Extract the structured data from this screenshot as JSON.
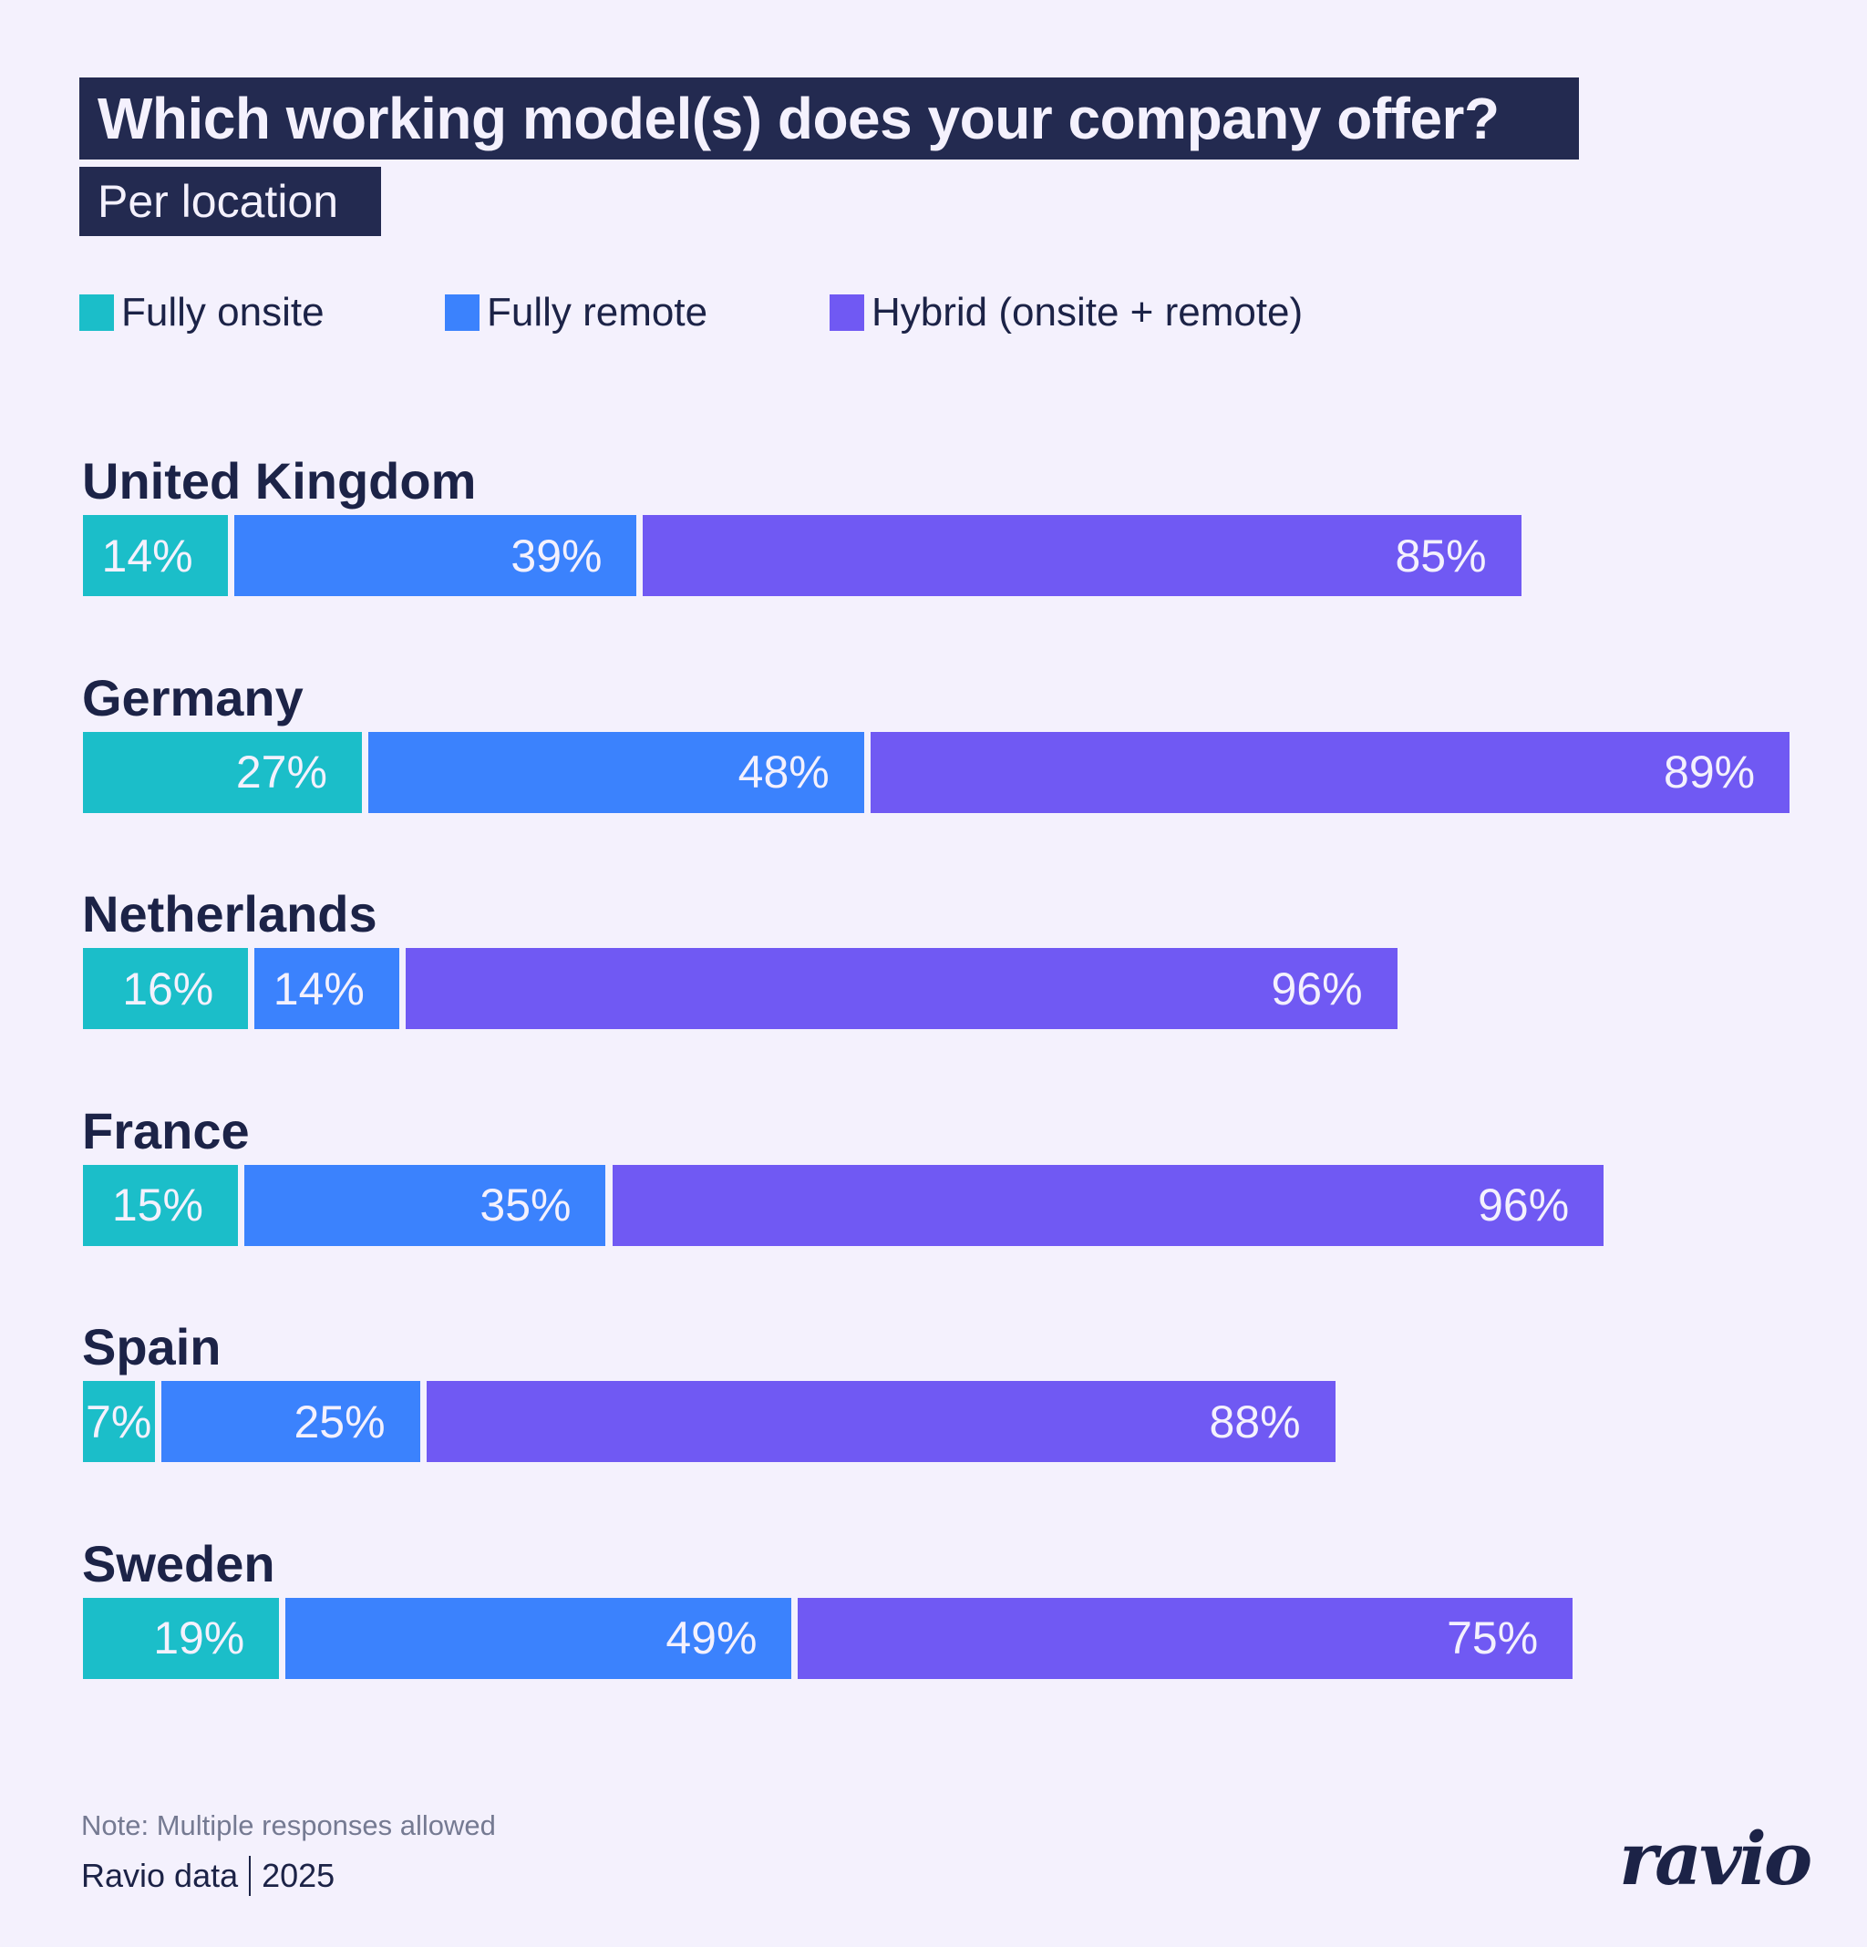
{
  "header": {
    "title": "Which working model(s) does your company offer?",
    "subtitle": "Per location"
  },
  "legend": [
    {
      "label": "Fully onsite",
      "color": "#1BBEC9"
    },
    {
      "label": "Fully remote",
      "color": "#3B82FD"
    },
    {
      "label": "Hybrid (onsite + remote)",
      "color": "#7059F3"
    }
  ],
  "chart_data": {
    "type": "bar",
    "orientation": "horizontal",
    "layout": "grouped-inline (segments placed side by side per country, each sized by its own value)",
    "title": "Which working model(s) does your company offer?",
    "subtitle": "Per location",
    "categories": [
      "United Kingdom",
      "Germany",
      "Netherlands",
      "France",
      "Spain",
      "Sweden"
    ],
    "series": [
      {
        "name": "Fully onsite",
        "color": "#1BBEC9",
        "values": [
          14,
          27,
          16,
          15,
          7,
          19
        ]
      },
      {
        "name": "Fully remote",
        "color": "#3B82FD",
        "values": [
          39,
          48,
          14,
          35,
          25,
          49
        ]
      },
      {
        "name": "Hybrid (onsite + remote)",
        "color": "#7059F3",
        "values": [
          85,
          89,
          96,
          96,
          88,
          75
        ]
      }
    ],
    "value_format": "percent",
    "data_labels": [
      [
        "14%",
        "39%",
        "85%"
      ],
      [
        "27%",
        "48%",
        "89%"
      ],
      [
        "16%",
        "14%",
        "96%"
      ],
      [
        "15%",
        "35%",
        "96%"
      ],
      [
        "7%",
        "25%",
        "88%"
      ],
      [
        "19%",
        "49%",
        "75%"
      ]
    ],
    "xlabel": "",
    "ylabel": "",
    "grid": false,
    "legend_position": "top-left"
  },
  "footer": {
    "note": "Note: Multiple responses allowed",
    "source": "Ravio data",
    "year": "2025",
    "logo": "ravio"
  }
}
